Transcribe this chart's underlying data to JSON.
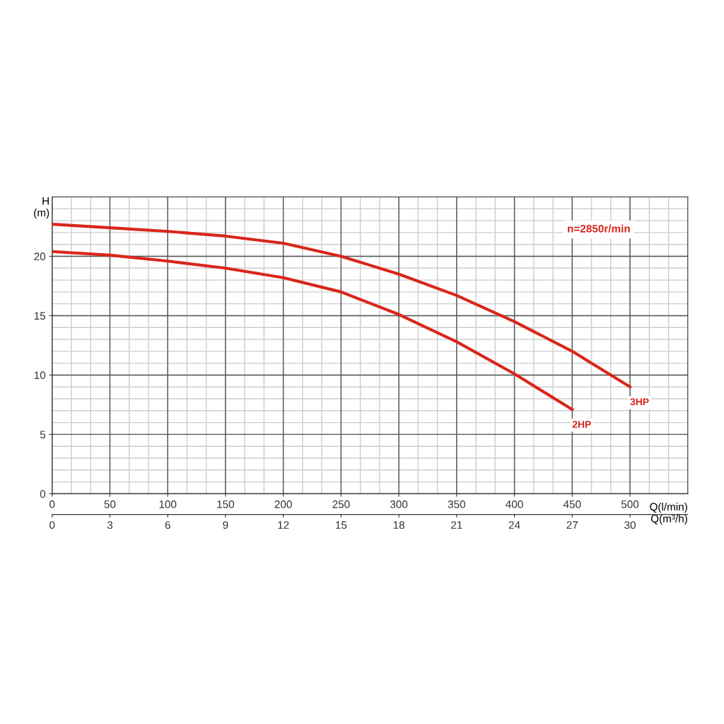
{
  "chart_data": {
    "type": "line",
    "ylabel": "H\n(m)",
    "xlabel": "Q(l/min)",
    "x2label": "Q(m³/h)",
    "xlim": [
      0,
      550
    ],
    "xticks": [
      0,
      50,
      100,
      150,
      200,
      250,
      300,
      350,
      400,
      450,
      500
    ],
    "x2lim": [
      0,
      33
    ],
    "x2ticks": [
      0,
      3,
      6,
      9,
      12,
      15,
      18,
      21,
      24,
      27,
      30
    ],
    "ylim": [
      0,
      25
    ],
    "yticks": [
      0,
      5,
      10,
      15,
      20
    ],
    "grid": true,
    "marker": "none",
    "line_style": "solid",
    "annotations": [
      "n=2850r/min"
    ],
    "series": [
      {
        "name": "3HP",
        "color": "#d9261c",
        "x": [
          0,
          50,
          100,
          150,
          200,
          250,
          300,
          350,
          400,
          450,
          500
        ],
        "values": [
          22.7,
          22.4,
          22.1,
          21.7,
          21.1,
          20.0,
          18.5,
          16.7,
          14.5,
          12.0,
          9.0
        ]
      },
      {
        "name": "2HP",
        "color": "#d9261c",
        "x": [
          0,
          50,
          100,
          150,
          200,
          250,
          300,
          350,
          400,
          450
        ],
        "values": [
          20.4,
          20.1,
          19.6,
          19.0,
          18.2,
          17.0,
          15.1,
          12.8,
          10.1,
          7.1
        ]
      }
    ]
  }
}
